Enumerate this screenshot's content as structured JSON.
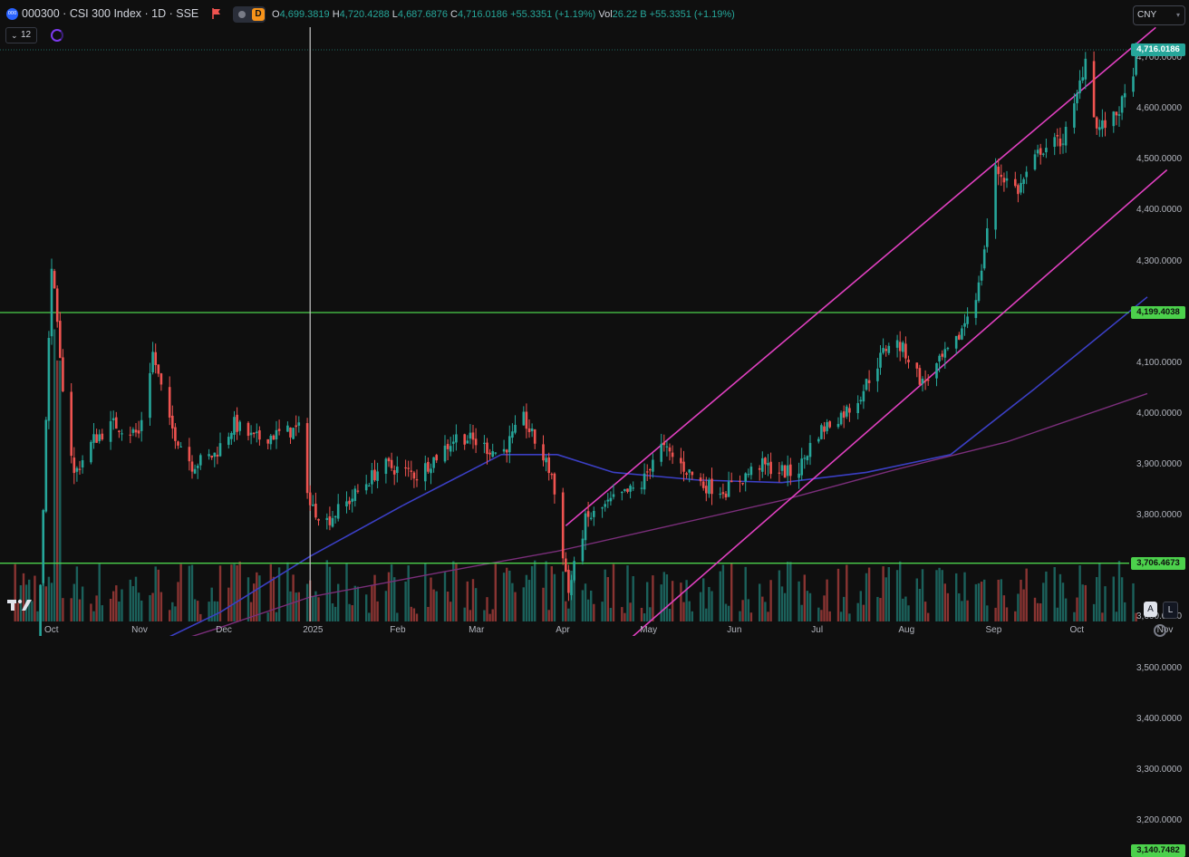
{
  "header": {
    "symbol_badge": "000",
    "title": "000300 · CSI 300 Index · 1D · SSE",
    "ohlc": [
      {
        "k": "O",
        "v": "4,699.3819"
      },
      {
        "k": "H",
        "v": "4,720.4288"
      },
      {
        "k": "L",
        "v": "4,687.6876"
      },
      {
        "k": "C",
        "v": "4,716.0186"
      },
      {
        "k": "",
        "v": "+55.3351 (+1.19%)"
      },
      {
        "k": "Vol",
        "v": "26.22 B"
      },
      {
        "k": "",
        "v": "+55.3351 (+1.19%)"
      }
    ],
    "indicator_count": "12",
    "currency": "CNY"
  },
  "colors": {
    "up": "#26a69a",
    "down": "#ef5350",
    "channel": "#e040c0",
    "level": "#4cd14c",
    "ma_fast": "#3b3fc4",
    "ma_slow": "#7a2e7a",
    "cursor": "#c8c8c8"
  },
  "price_labels": [
    {
      "value": 4716.0186,
      "text": "4,716.0186",
      "bg": "#26a69a",
      "fg": "#ffffff"
    },
    {
      "value": 4199.4038,
      "text": "4,199.4038",
      "bg": "#4cd14c",
      "fg": "#0f0f0f"
    },
    {
      "value": 3706.4673,
      "text": "3,706.4673",
      "bg": "#4cd14c",
      "fg": "#0f0f0f"
    },
    {
      "value": 3140.7482,
      "text": "3,140.7482",
      "bg": "#4cd14c",
      "fg": "#0f0f0f"
    }
  ],
  "horizontal_levels": [
    4199.4038,
    3706.4673,
    3140.7482
  ],
  "y_ticks": [
    {
      "v": 4700,
      "t": "4,700.0000"
    },
    {
      "v": 4600,
      "t": "4,600.0000"
    },
    {
      "v": 4500,
      "t": "4,500.0000"
    },
    {
      "v": 4400,
      "t": "4,400.0000"
    },
    {
      "v": 4300,
      "t": "4,300.0000"
    },
    {
      "v": 4100,
      "t": "4,100.0000"
    },
    {
      "v": 4000,
      "t": "4,000.0000"
    },
    {
      "v": 3900,
      "t": "3,900.0000"
    },
    {
      "v": 3800,
      "t": "3,800.0000"
    },
    {
      "v": 3600,
      "t": "3,600.0000"
    },
    {
      "v": 3500,
      "t": "3,500.0000"
    },
    {
      "v": 3400,
      "t": "3,400.0000"
    },
    {
      "v": 3300,
      "t": "3,300.0000"
    },
    {
      "v": 3200,
      "t": "3,200.0000"
    }
  ],
  "x_ticks": [
    {
      "label": "Oct",
      "day": 0
    },
    {
      "label": "Nov",
      "day": 31
    },
    {
      "label": "Dec",
      "day": 61
    },
    {
      "label": "2025",
      "day": 92
    },
    {
      "label": "Feb",
      "day": 123
    },
    {
      "label": "Mar",
      "day": 151
    },
    {
      "label": "Apr",
      "day": 182
    },
    {
      "label": "May",
      "day": 212
    },
    {
      "label": "Jun",
      "day": 243
    },
    {
      "label": "Jul",
      "day": 273
    },
    {
      "label": "Aug",
      "day": 304
    },
    {
      "label": "Sep",
      "day": 335
    },
    {
      "label": "Oct",
      "day": 365
    },
    {
      "label": "Nov",
      "day": 396
    }
  ],
  "chart_data": {
    "type": "candlestick",
    "series_keypoints": [
      [
        -13,
        3300
      ],
      [
        -6,
        3350
      ],
      [
        0,
        4300
      ],
      [
        3,
        4100
      ],
      [
        8,
        3880
      ],
      [
        15,
        3950
      ],
      [
        22,
        3980
      ],
      [
        31,
        3960
      ],
      [
        36,
        4120
      ],
      [
        42,
        3980
      ],
      [
        50,
        3900
      ],
      [
        58,
        3920
      ],
      [
        65,
        3980
      ],
      [
        72,
        3950
      ],
      [
        80,
        3960
      ],
      [
        88,
        3970
      ],
      [
        92,
        3820
      ],
      [
        98,
        3790
      ],
      [
        106,
        3830
      ],
      [
        118,
        3900
      ],
      [
        130,
        3880
      ],
      [
        145,
        3960
      ],
      [
        160,
        3920
      ],
      [
        168,
        3990
      ],
      [
        178,
        3880
      ],
      [
        184,
        3650
      ],
      [
        190,
        3790
      ],
      [
        200,
        3830
      ],
      [
        210,
        3860
      ],
      [
        216,
        3940
      ],
      [
        224,
        3900
      ],
      [
        232,
        3860
      ],
      [
        240,
        3850
      ],
      [
        252,
        3900
      ],
      [
        265,
        3880
      ],
      [
        272,
        3960
      ],
      [
        286,
        4020
      ],
      [
        294,
        4100
      ],
      [
        299,
        4150
      ],
      [
        304,
        4120
      ],
      [
        310,
        4060
      ],
      [
        322,
        4140
      ],
      [
        330,
        4250
      ],
      [
        336,
        4480
      ],
      [
        344,
        4440
      ],
      [
        352,
        4520
      ],
      [
        360,
        4540
      ],
      [
        364,
        4600
      ],
      [
        368,
        4700
      ],
      [
        372,
        4560
      ],
      [
        378,
        4580
      ],
      [
        384,
        4640
      ],
      [
        386,
        4716
      ]
    ],
    "channel_lines": [
      [
        [
          183,
          3780
        ],
        [
          393,
          4760
        ]
      ],
      [
        [
          167,
          3370
        ],
        [
          397,
          4480
        ]
      ]
    ],
    "long_trend": [
      [
        -20,
        3520
      ],
      [
        246,
        3200
      ]
    ],
    "ma_fast": [
      [
        -20,
        3480
      ],
      [
        -8,
        3450
      ],
      [
        5,
        3470
      ],
      [
        30,
        3530
      ],
      [
        60,
        3610
      ],
      [
        92,
        3720
      ],
      [
        125,
        3820
      ],
      [
        160,
        3920
      ],
      [
        180,
        3920
      ],
      [
        200,
        3885
      ],
      [
        230,
        3870
      ],
      [
        260,
        3865
      ],
      [
        290,
        3885
      ],
      [
        320,
        3920
      ],
      [
        350,
        4050
      ],
      [
        390,
        4230
      ]
    ],
    "ma_slow": [
      [
        -20,
        3460
      ],
      [
        20,
        3510
      ],
      [
        60,
        3580
      ],
      [
        92,
        3640
      ],
      [
        140,
        3690
      ],
      [
        180,
        3730
      ],
      [
        220,
        3780
      ],
      [
        260,
        3830
      ],
      [
        300,
        3890
      ],
      [
        340,
        3945
      ],
      [
        390,
        4040
      ]
    ],
    "crosshair_day": 92,
    "last_close": 4716.0186
  }
}
